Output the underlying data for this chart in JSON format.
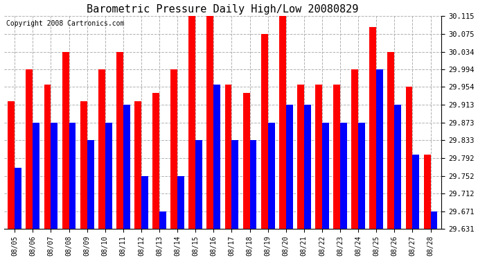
{
  "title": "Barometric Pressure Daily High/Low 20080829",
  "copyright": "Copyright 2008 Cartronics.com",
  "dates": [
    "08/05",
    "08/06",
    "08/07",
    "08/08",
    "08/09",
    "08/10",
    "08/11",
    "08/12",
    "08/13",
    "08/14",
    "08/15",
    "08/16",
    "08/17",
    "08/18",
    "08/19",
    "08/20",
    "08/21",
    "08/22",
    "08/23",
    "08/24",
    "08/25",
    "08/26",
    "08/27",
    "08/28"
  ],
  "highs": [
    29.921,
    29.994,
    29.96,
    30.034,
    29.921,
    29.994,
    30.034,
    29.921,
    29.94,
    29.994,
    30.115,
    30.115,
    29.96,
    29.94,
    30.075,
    30.115,
    29.96,
    29.96,
    29.96,
    29.994,
    30.09,
    30.034,
    29.954,
    29.8
  ],
  "lows": [
    29.77,
    29.873,
    29.873,
    29.873,
    29.833,
    29.873,
    29.913,
    29.752,
    29.671,
    29.752,
    29.833,
    29.96,
    29.833,
    29.833,
    29.873,
    29.913,
    29.913,
    29.873,
    29.873,
    29.873,
    29.994,
    29.913,
    29.8,
    29.671
  ],
  "ylim_min": 29.631,
  "ylim_max": 30.115,
  "yticks": [
    29.631,
    29.671,
    29.712,
    29.752,
    29.792,
    29.833,
    29.873,
    29.913,
    29.954,
    29.994,
    30.034,
    30.075,
    30.115
  ],
  "high_color": "#ff0000",
  "low_color": "#0000ff",
  "bg_color": "#ffffff",
  "grid_color": "#b0b0b0",
  "title_fontsize": 11,
  "copyright_fontsize": 7
}
